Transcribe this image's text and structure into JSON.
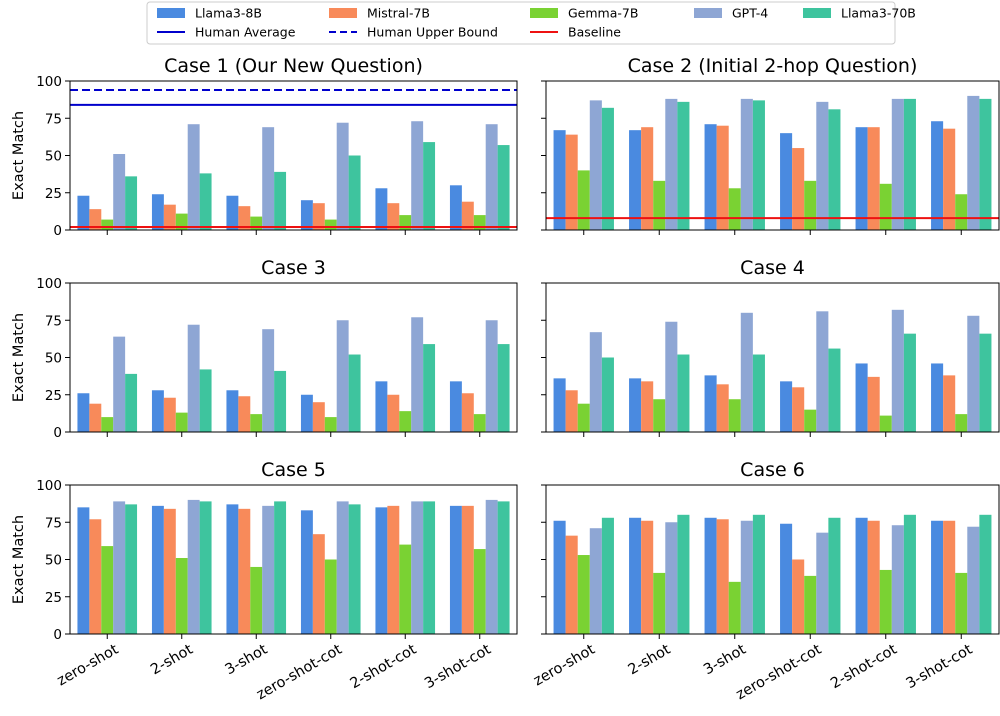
{
  "legend": {
    "entries": [
      {
        "label": "Llama3-8B",
        "kind": "bar",
        "color": "#4a8ae0"
      },
      {
        "label": "Mistral-7B",
        "kind": "bar",
        "color": "#f88a5a"
      },
      {
        "label": "Gemma-7B",
        "kind": "bar",
        "color": "#7ad233"
      },
      {
        "label": "GPT-4",
        "kind": "bar",
        "color": "#8ea6d4"
      },
      {
        "label": "Llama3-70B",
        "kind": "bar",
        "color": "#3ec49e"
      },
      {
        "label": "Human Average",
        "kind": "line",
        "color": "#0000cc",
        "style": "solid"
      },
      {
        "label": "Human Upper Bound",
        "kind": "line",
        "color": "#0000cc",
        "style": "dashed"
      },
      {
        "label": "Baseline",
        "kind": "line",
        "color": "#ee1111",
        "style": "solid"
      }
    ]
  },
  "chart_data": [
    {
      "type": "bar",
      "title": "Case 1 (Our New Question)",
      "ylabel": "Exact Match",
      "ylim": [
        0,
        100
      ],
      "yticks": [
        "0",
        "25",
        "50",
        "75",
        "100"
      ],
      "categories": [
        "zero-shot",
        "2-shot",
        "3-shot",
        "zero-shot-cot",
        "2-shot-cot",
        "3-shot-cot"
      ],
      "series": [
        {
          "name": "Llama3-8B",
          "values": [
            23,
            24,
            23,
            20,
            28,
            30
          ]
        },
        {
          "name": "Mistral-7B",
          "values": [
            14,
            17,
            16,
            18,
            18,
            19
          ]
        },
        {
          "name": "Gemma-7B",
          "values": [
            7,
            11,
            9,
            7,
            10,
            10
          ]
        },
        {
          "name": "GPT-4",
          "values": [
            51,
            71,
            69,
            72,
            73,
            71
          ]
        },
        {
          "name": "Llama3-70B",
          "values": [
            36,
            38,
            39,
            50,
            59,
            57
          ]
        }
      ],
      "reference_lines": [
        {
          "name": "Human Average",
          "value": 84
        },
        {
          "name": "Human Upper Bound",
          "value": 94
        },
        {
          "name": "Baseline",
          "value": 2
        }
      ]
    },
    {
      "type": "bar",
      "title": "Case 2 (Initial 2-hop Question)",
      "ylabel": "",
      "ylim": [
        0,
        100
      ],
      "yticks": [],
      "categories": [
        "zero-shot",
        "2-shot",
        "3-shot",
        "zero-shot-cot",
        "2-shot-cot",
        "3-shot-cot"
      ],
      "series": [
        {
          "name": "Llama3-8B",
          "values": [
            67,
            67,
            71,
            65,
            69,
            73
          ]
        },
        {
          "name": "Mistral-7B",
          "values": [
            64,
            69,
            70,
            55,
            69,
            68
          ]
        },
        {
          "name": "Gemma-7B",
          "values": [
            40,
            33,
            28,
            33,
            31,
            24
          ]
        },
        {
          "name": "GPT-4",
          "values": [
            87,
            88,
            88,
            86,
            88,
            90
          ]
        },
        {
          "name": "Llama3-70B",
          "values": [
            82,
            86,
            87,
            81,
            88,
            88
          ]
        }
      ],
      "reference_lines": [
        {
          "name": "Baseline",
          "value": 8
        }
      ]
    },
    {
      "type": "bar",
      "title": "Case 3",
      "ylabel": "Exact Match",
      "ylim": [
        0,
        100
      ],
      "yticks": [
        "0",
        "25",
        "50",
        "75",
        "100"
      ],
      "categories": [
        "zero-shot",
        "2-shot",
        "3-shot",
        "zero-shot-cot",
        "2-shot-cot",
        "3-shot-cot"
      ],
      "series": [
        {
          "name": "Llama3-8B",
          "values": [
            26,
            28,
            28,
            25,
            34,
            34
          ]
        },
        {
          "name": "Mistral-7B",
          "values": [
            19,
            23,
            24,
            20,
            25,
            26
          ]
        },
        {
          "name": "Gemma-7B",
          "values": [
            10,
            13,
            12,
            10,
            14,
            12
          ]
        },
        {
          "name": "GPT-4",
          "values": [
            64,
            72,
            69,
            75,
            77,
            75
          ]
        },
        {
          "name": "Llama3-70B",
          "values": [
            39,
            42,
            41,
            52,
            59,
            59
          ]
        }
      ],
      "reference_lines": []
    },
    {
      "type": "bar",
      "title": "Case 4",
      "ylabel": "",
      "ylim": [
        0,
        100
      ],
      "yticks": [],
      "categories": [
        "zero-shot",
        "2-shot",
        "3-shot",
        "zero-shot-cot",
        "2-shot-cot",
        "3-shot-cot"
      ],
      "series": [
        {
          "name": "Llama3-8B",
          "values": [
            36,
            36,
            38,
            34,
            46,
            46
          ]
        },
        {
          "name": "Mistral-7B",
          "values": [
            28,
            34,
            32,
            30,
            37,
            38
          ]
        },
        {
          "name": "Gemma-7B",
          "values": [
            19,
            22,
            22,
            15,
            11,
            12
          ]
        },
        {
          "name": "GPT-4",
          "values": [
            67,
            74,
            80,
            81,
            82,
            78
          ]
        },
        {
          "name": "Llama3-70B",
          "values": [
            50,
            52,
            52,
            56,
            66,
            66
          ]
        }
      ],
      "reference_lines": []
    },
    {
      "type": "bar",
      "title": "Case 5",
      "ylabel": "Exact Match",
      "ylim": [
        0,
        100
      ],
      "yticks": [
        "0",
        "25",
        "50",
        "75",
        "100"
      ],
      "categories": [
        "zero-shot",
        "2-shot",
        "3-shot",
        "zero-shot-cot",
        "2-shot-cot",
        "3-shot-cot"
      ],
      "xticks_visible": true,
      "series": [
        {
          "name": "Llama3-8B",
          "values": [
            85,
            86,
            87,
            83,
            85,
            86
          ]
        },
        {
          "name": "Mistral-7B",
          "values": [
            77,
            84,
            84,
            67,
            86,
            86
          ]
        },
        {
          "name": "Gemma-7B",
          "values": [
            59,
            51,
            45,
            50,
            60,
            57
          ]
        },
        {
          "name": "GPT-4",
          "values": [
            89,
            90,
            86,
            89,
            89,
            90
          ]
        },
        {
          "name": "Llama3-70B",
          "values": [
            87,
            89,
            89,
            87,
            89,
            89
          ]
        }
      ],
      "reference_lines": []
    },
    {
      "type": "bar",
      "title": "Case 6",
      "ylabel": "",
      "ylim": [
        0,
        100
      ],
      "yticks": [],
      "categories": [
        "zero-shot",
        "2-shot",
        "3-shot",
        "zero-shot-cot",
        "2-shot-cot",
        "3-shot-cot"
      ],
      "xticks_visible": true,
      "series": [
        {
          "name": "Llama3-8B",
          "values": [
            76,
            78,
            78,
            74,
            78,
            76
          ]
        },
        {
          "name": "Mistral-7B",
          "values": [
            66,
            76,
            77,
            50,
            76,
            76
          ]
        },
        {
          "name": "Gemma-7B",
          "values": [
            53,
            41,
            35,
            39,
            43,
            41
          ]
        },
        {
          "name": "GPT-4",
          "values": [
            71,
            75,
            76,
            68,
            73,
            72
          ]
        },
        {
          "name": "Llama3-70B",
          "values": [
            78,
            80,
            80,
            78,
            80,
            80
          ]
        }
      ],
      "reference_lines": []
    }
  ]
}
